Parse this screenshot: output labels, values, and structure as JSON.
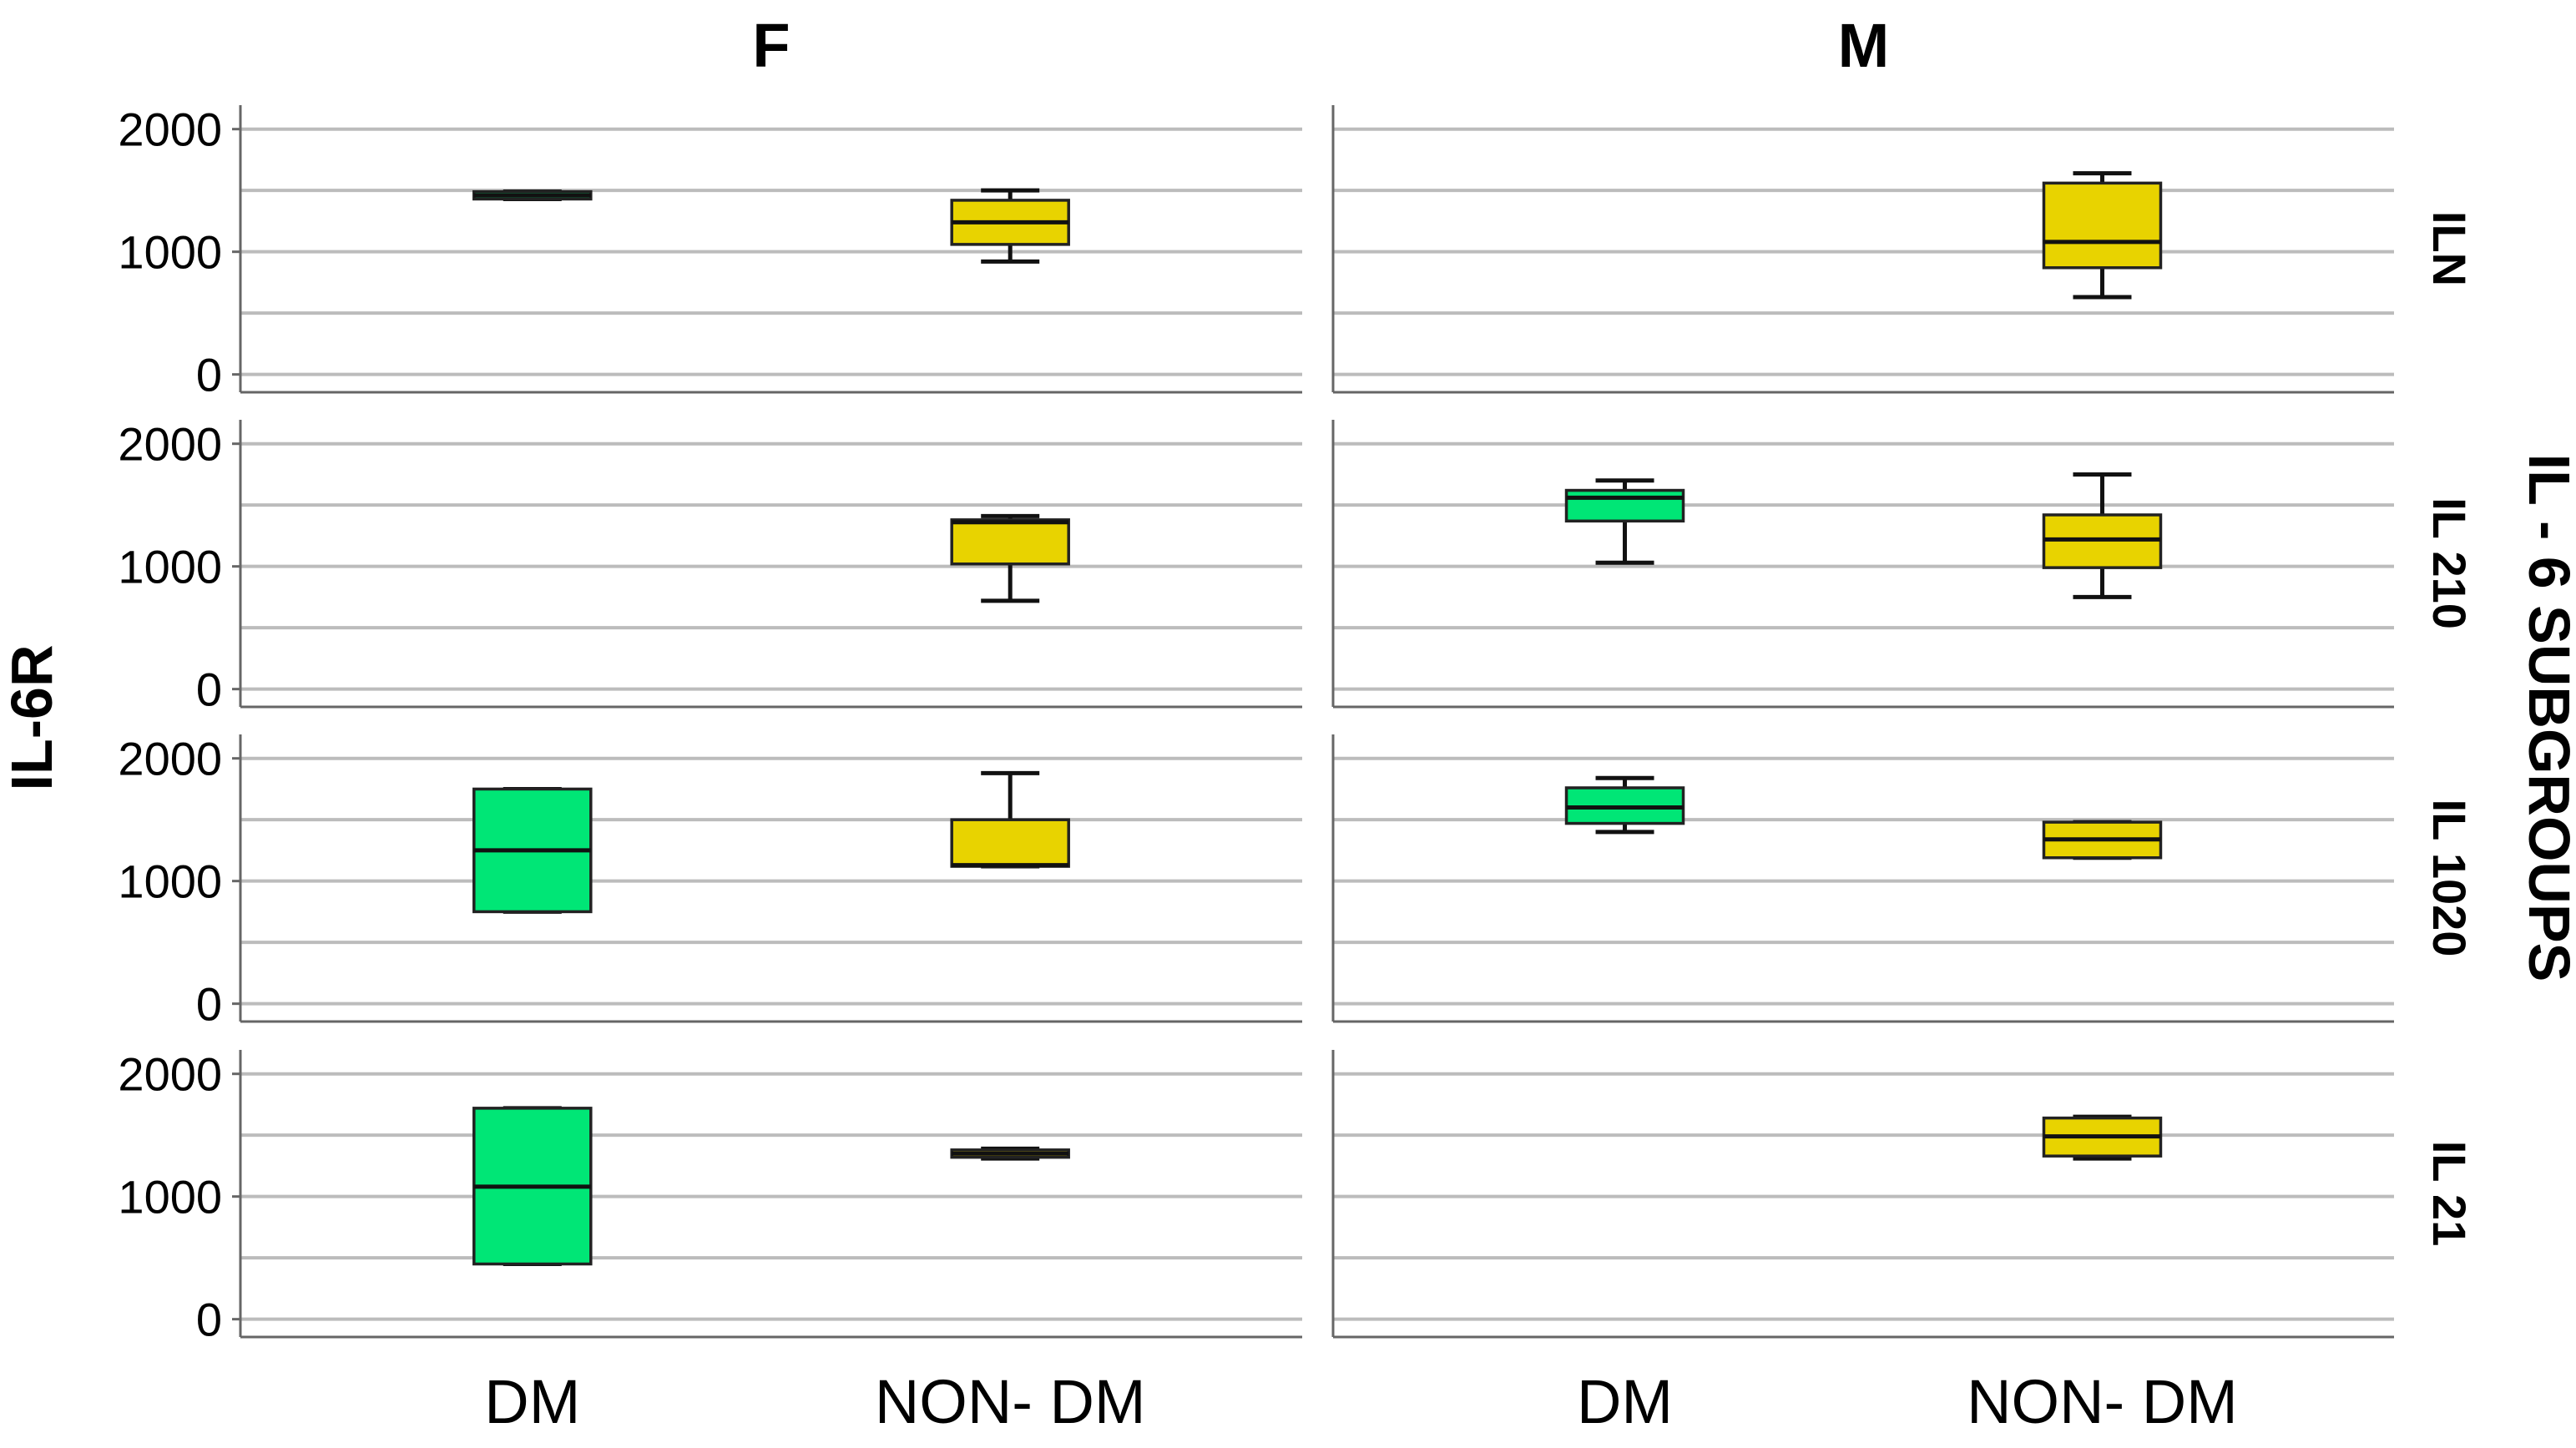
{
  "chart_data": {
    "type": "boxplot",
    "y_axis_title": "IL-6R",
    "row_facet_title": "IL - 6 SUBGROUPS",
    "column_facets": [
      "F",
      "M"
    ],
    "row_facets": [
      "ILN",
      "IL 210",
      "IL 1020",
      "IL 21"
    ],
    "categories": [
      "DM",
      "NON- DM"
    ],
    "y_ticks": [
      0,
      1000,
      2000
    ],
    "ylim": [
      -50,
      2100
    ],
    "grid_values": [
      0,
      500,
      1000,
      1500,
      2000
    ],
    "colors": {
      "DM": "#00e676",
      "NON- DM": "#e8d300"
    },
    "boxes": [
      {
        "row": "ILN",
        "column": "F",
        "category": "DM",
        "min": 1430,
        "q1": 1430,
        "median": 1460,
        "q3": 1490,
        "max": 1490
      },
      {
        "row": "ILN",
        "column": "F",
        "category": "NON- DM",
        "min": 920,
        "q1": 1060,
        "median": 1240,
        "q3": 1420,
        "max": 1500
      },
      {
        "row": "ILN",
        "column": "M",
        "category": "NON- DM",
        "min": 630,
        "q1": 870,
        "median": 1080,
        "q3": 1560,
        "max": 1640
      },
      {
        "row": "IL 210",
        "column": "F",
        "category": "NON- DM",
        "min": 720,
        "q1": 1020,
        "median": 1360,
        "q3": 1380,
        "max": 1410
      },
      {
        "row": "IL 210",
        "column": "M",
        "category": "DM",
        "min": 1030,
        "q1": 1370,
        "median": 1560,
        "q3": 1620,
        "max": 1700
      },
      {
        "row": "IL 210",
        "column": "M",
        "category": "NON- DM",
        "min": 750,
        "q1": 990,
        "median": 1220,
        "q3": 1420,
        "max": 1750
      },
      {
        "row": "IL 1020",
        "column": "F",
        "category": "DM",
        "min": 750,
        "q1": 750,
        "median": 1250,
        "q3": 1750,
        "max": 1750
      },
      {
        "row": "IL 1020",
        "column": "F",
        "category": "NON- DM",
        "min": 1120,
        "q1": 1120,
        "median": 1130,
        "q3": 1500,
        "max": 1880
      },
      {
        "row": "IL 1020",
        "column": "M",
        "category": "DM",
        "min": 1400,
        "q1": 1470,
        "median": 1600,
        "q3": 1760,
        "max": 1840
      },
      {
        "row": "IL 1020",
        "column": "M",
        "category": "NON- DM",
        "min": 1190,
        "q1": 1190,
        "median": 1340,
        "q3": 1480,
        "max": 1480
      },
      {
        "row": "IL 21",
        "column": "F",
        "category": "DM",
        "min": 450,
        "q1": 450,
        "median": 1080,
        "q3": 1720,
        "max": 1720
      },
      {
        "row": "IL 21",
        "column": "F",
        "category": "NON- DM",
        "min": 1310,
        "q1": 1320,
        "median": 1350,
        "q3": 1380,
        "max": 1390
      },
      {
        "row": "IL 21",
        "column": "M",
        "category": "NON- DM",
        "min": 1310,
        "q1": 1330,
        "median": 1490,
        "q3": 1640,
        "max": 1650
      }
    ]
  }
}
